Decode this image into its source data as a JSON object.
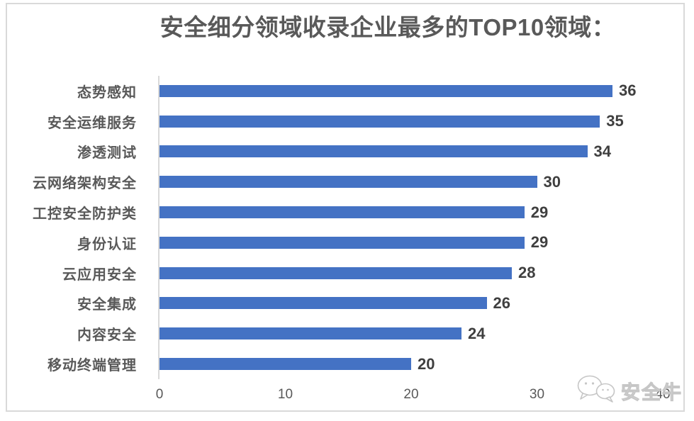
{
  "title": "安全细分领域收录企业最多的TOP10领域：",
  "colors": {
    "bar": "#4472C4",
    "title": "#595959",
    "label": "#595959",
    "value": "#3F3F3F",
    "tick": "#595959",
    "axis": "#D9D9D9",
    "watermark": "#C6C6C6"
  },
  "chart_data": {
    "type": "bar",
    "orientation": "horizontal",
    "title": "安全细分领域收录企业最多的TOP10领域：",
    "categories": [
      "态势感知",
      "安全运维服务",
      "渗透测试",
      "云网络架构安全",
      "工控安全防护类",
      "身份认证",
      "云应用安全",
      "安全集成",
      "内容安全",
      "移动终端管理"
    ],
    "values": [
      36,
      35,
      34,
      30,
      29,
      29,
      28,
      26,
      24,
      20
    ],
    "xlim": [
      0,
      40
    ],
    "x_ticks": [
      "0",
      "10",
      "20",
      "30",
      "40"
    ],
    "xlabel": "",
    "ylabel": "",
    "grid": false,
    "legend": false,
    "data_labels": true
  },
  "watermark": {
    "text": "安全牛",
    "icon": "chat-bubbles-icon"
  }
}
